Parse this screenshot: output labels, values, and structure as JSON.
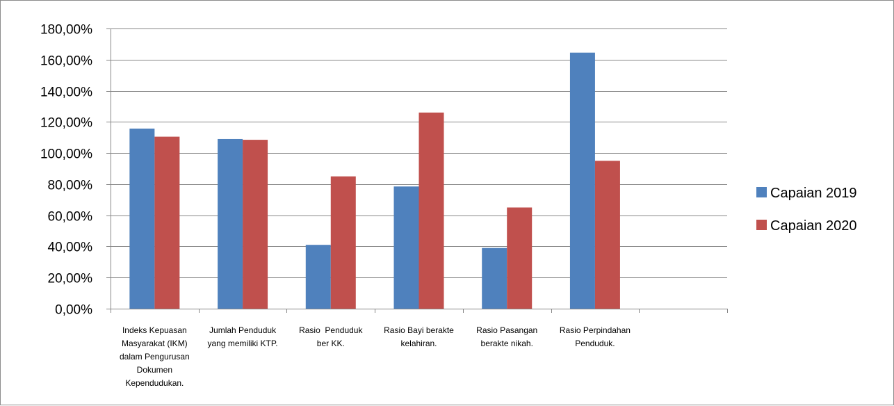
{
  "chart_data": {
    "type": "bar",
    "title": "",
    "xlabel": "",
    "ylabel": "",
    "ylim": [
      0,
      180
    ],
    "y_ticks": [
      "0,00%",
      "20,00%",
      "40,00%",
      "60,00%",
      "80,00%",
      "100,00%",
      "120,00%",
      "140,00%",
      "160,00%",
      "180,00%"
    ],
    "grid": true,
    "legend_position": "right",
    "categories": [
      [
        "Indeks Kepuasan",
        "Masyarakat (IKM)",
        "dalam Pengurusan",
        "Dokumen",
        "Kependudukan."
      ],
      [
        "Jumlah Penduduk",
        "yang memiliki KTP."
      ],
      [
        "Rasio  Penduduk",
        "ber KK."
      ],
      [
        "Rasio Bayi berakte",
        "kelahiran."
      ],
      [
        "Rasio Pasangan",
        "berakte nikah."
      ],
      [
        "Rasio Perpindahan",
        "Penduduk."
      ],
      [
        ""
      ]
    ],
    "series": [
      {
        "name": "Capaian 2019",
        "color": "#4f81bd",
        "values": [
          115.7,
          109.0,
          41.0,
          78.5,
          39.0,
          164.5,
          null
        ]
      },
      {
        "name": "Capaian 2020",
        "color": "#c0504d",
        "values": [
          110.5,
          108.5,
          85.0,
          126.0,
          65.0,
          95.0,
          null
        ]
      }
    ]
  }
}
